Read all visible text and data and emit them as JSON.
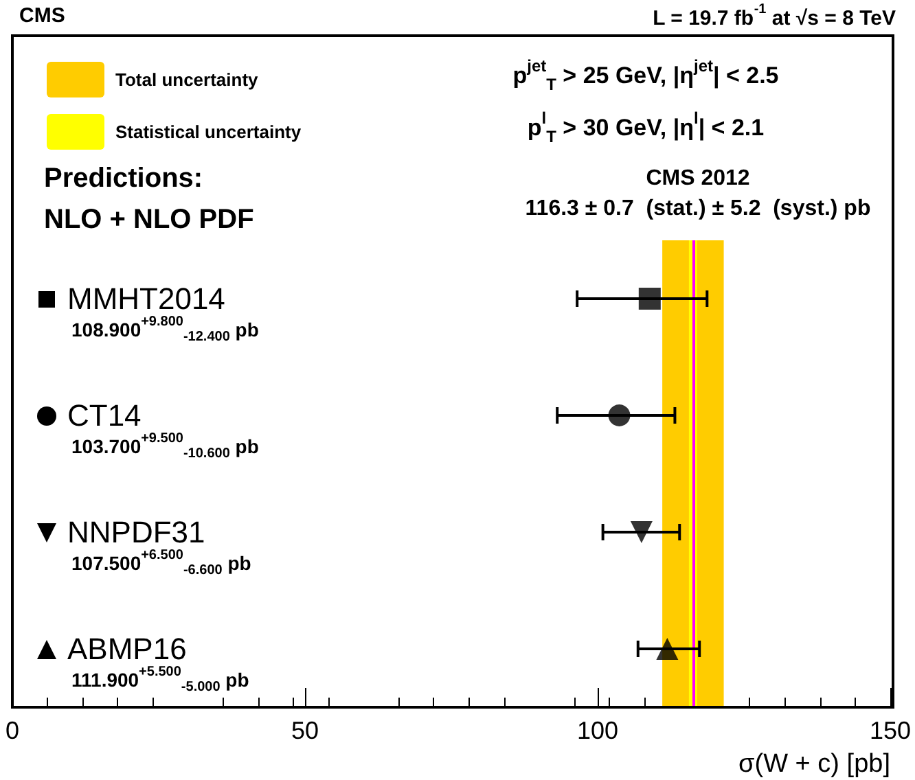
{
  "chart_data": {
    "type": "scatter",
    "orientation": "horizontal",
    "xlabel": "σ(W + c) [pb]",
    "categories": [
      "MMHT2014",
      "CT14",
      "NNPDF31",
      "ABMP16"
    ],
    "series": [
      {
        "color": "#000000",
        "marker": "square",
        "values": [
          108.9,
          null,
          null,
          null
        ],
        "errors": [
          [
            96.5,
            118.7
          ],
          null,
          null,
          null
        ]
      },
      {
        "color": "#000000",
        "marker": "circle",
        "values": [
          null,
          103.7,
          null,
          null
        ],
        "errors": [
          null,
          [
            93.1,
            113.2
          ],
          null,
          null
        ]
      },
      {
        "color": "#000000",
        "marker": "triangle-down",
        "values": [
          null,
          null,
          107.5,
          null
        ],
        "errors": [
          null,
          null,
          [
            100.9,
            114.0
          ],
          null
        ]
      },
      {
        "color": "#000000",
        "marker": "triangle",
        "values": [
          null,
          null,
          null,
          111.9
        ],
        "errors": [
          null,
          null,
          null,
          [
            106.9,
            117.4
          ]
        ]
      }
    ],
    "xlim": [
      0,
      150
    ],
    "xticks": [
      0,
      50,
      100,
      150
    ],
    "bands": [
      {
        "axis": "x",
        "from": 111.05,
        "to": 121.55,
        "label": "Total uncertainty",
        "color": "#ffcc00"
      },
      {
        "axis": "x",
        "from": 115.6,
        "to": 117.0,
        "label": "Statistical uncertainty",
        "color": "#ffff00"
      }
    ],
    "ref_lines": [
      {
        "axis": "x",
        "value": 116.3,
        "color": "#ff00ff"
      }
    ],
    "legend": "top left",
    "grid": false,
    "annotations": [
      "CMS",
      "L = 19.7 fb$^{-1}$ at √s = 8 TeV",
      "p$^{jet}$$_{T}$ > 25 GeV, |η$^{jet}$| < 2.5",
      "p$^{l}$$_{T}$ > 30 GeV, |η$^{l}$| < 2.1",
      "Predictions:",
      "NLO + NLO PDF",
      "CMS 2012",
      "116.3 ± 0.7  (stat.) ± 5.2  (syst.) pb",
      "108.900$^{+9.800}$$_{-12.400}$ pb",
      "103.700$^{+9.500}$$_{-10.600}$ pb",
      "107.500$^{+6.500}$$_{-6.600}$ pb",
      "111.900$^{+5.500}$$_{-5.000}$ pb"
    ]
  }
}
